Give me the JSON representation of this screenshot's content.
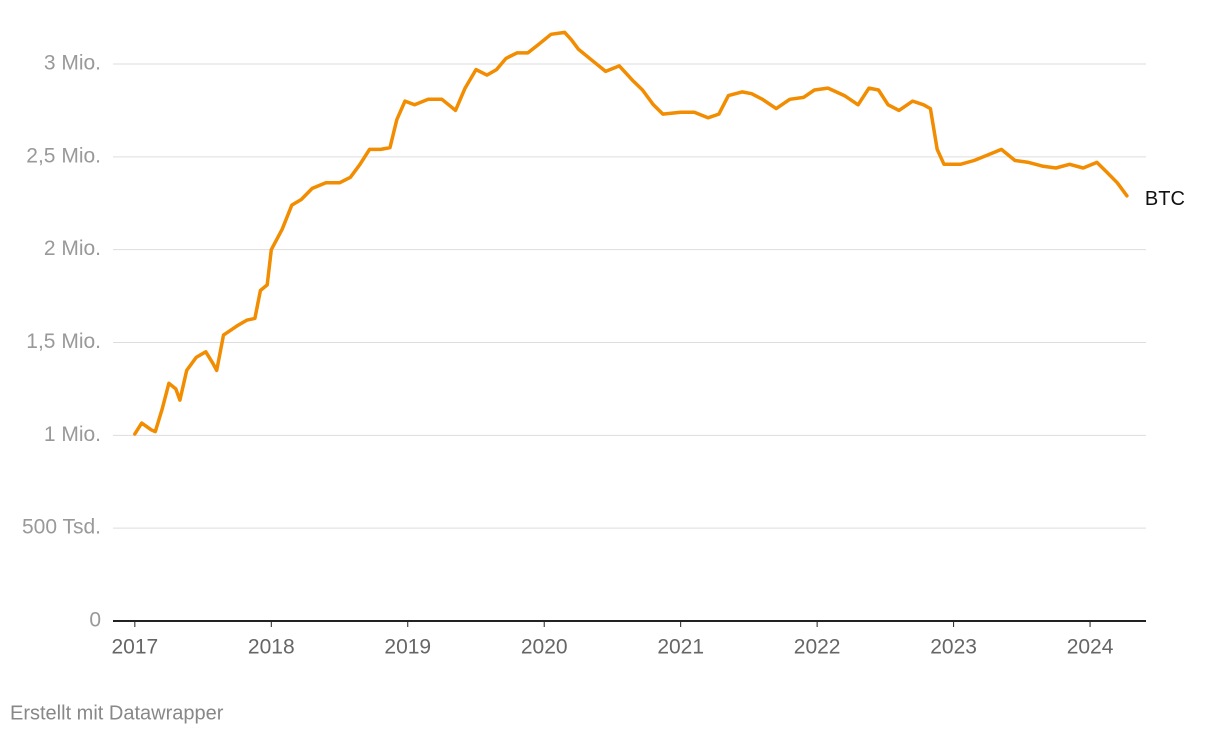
{
  "chart_data": {
    "type": "line",
    "footer": "Erstellt mit Datawrapper",
    "x": [
      2017.0,
      2017.05,
      2017.12,
      2017.15,
      2017.2,
      2017.25,
      2017.3,
      2017.33,
      2017.38,
      2017.45,
      2017.52,
      2017.57,
      2017.6,
      2017.65,
      2017.75,
      2017.82,
      2017.88,
      2017.92,
      2017.97,
      2018.0,
      2018.08,
      2018.15,
      2018.22,
      2018.3,
      2018.4,
      2018.5,
      2018.58,
      2018.65,
      2018.72,
      2018.8,
      2018.87,
      2018.92,
      2018.98,
      2019.05,
      2019.15,
      2019.25,
      2019.3,
      2019.35,
      2019.42,
      2019.5,
      2019.58,
      2019.65,
      2019.72,
      2019.8,
      2019.88,
      2019.95,
      2020.05,
      2020.15,
      2020.2,
      2020.25,
      2020.35,
      2020.45,
      2020.55,
      2020.65,
      2020.72,
      2020.8,
      2020.87,
      2021.0,
      2021.1,
      2021.2,
      2021.28,
      2021.35,
      2021.45,
      2021.52,
      2021.6,
      2021.7,
      2021.8,
      2021.9,
      2021.98,
      2022.08,
      2022.2,
      2022.3,
      2022.38,
      2022.45,
      2022.52,
      2022.6,
      2022.7,
      2022.78,
      2022.83,
      2022.88,
      2022.93,
      2023.05,
      2023.15,
      2023.25,
      2023.35,
      2023.45,
      2023.55,
      2023.65,
      2023.75,
      2023.85,
      2023.95,
      2024.05,
      2024.12,
      2024.2,
      2024.27
    ],
    "series": [
      {
        "name": "BTC",
        "color": "#f28c00",
        "values": [
          1007000,
          1066000,
          1030000,
          1020000,
          1140000,
          1280000,
          1250000,
          1190000,
          1350000,
          1420000,
          1450000,
          1390000,
          1350000,
          1540000,
          1590000,
          1620000,
          1630000,
          1780000,
          1810000,
          2000000,
          2110000,
          2240000,
          2270000,
          2330000,
          2360000,
          2360000,
          2390000,
          2460000,
          2540000,
          2540000,
          2550000,
          2700000,
          2800000,
          2780000,
          2810000,
          2810000,
          2780000,
          2750000,
          2870000,
          2970000,
          2940000,
          2970000,
          3030000,
          3060000,
          3060000,
          3100000,
          3160000,
          3170000,
          3130000,
          3080000,
          3020000,
          2960000,
          2990000,
          2910000,
          2860000,
          2780000,
          2730000,
          2740000,
          2740000,
          2710000,
          2730000,
          2830000,
          2850000,
          2840000,
          2810000,
          2760000,
          2810000,
          2820000,
          2860000,
          2870000,
          2830000,
          2780000,
          2870000,
          2860000,
          2780000,
          2750000,
          2800000,
          2780000,
          2760000,
          2540000,
          2460000,
          2460000,
          2480000,
          2510000,
          2540000,
          2480000,
          2470000,
          2450000,
          2440000,
          2460000,
          2440000,
          2470000,
          2420000,
          2360000,
          2290000
        ]
      }
    ],
    "xlim": [
      2016.84,
      2024.41
    ],
    "xticks": [
      2017,
      2018,
      2019,
      2020,
      2021,
      2022,
      2023,
      2024
    ],
    "ylim": [
      0,
      3250000
    ],
    "yticks": [
      0,
      {
        "value": 500000,
        "label": "500 Tsd."
      },
      {
        "value": 1000000,
        "label": "1 Mio."
      },
      {
        "value": 1500000,
        "label": "1,5 Mio."
      },
      {
        "value": 2000000,
        "label": "2 Mio."
      },
      {
        "value": 2500000,
        "label": "2,5 Mio."
      },
      {
        "value": 3000000,
        "label": "3 Mio."
      }
    ],
    "grid": true
  }
}
